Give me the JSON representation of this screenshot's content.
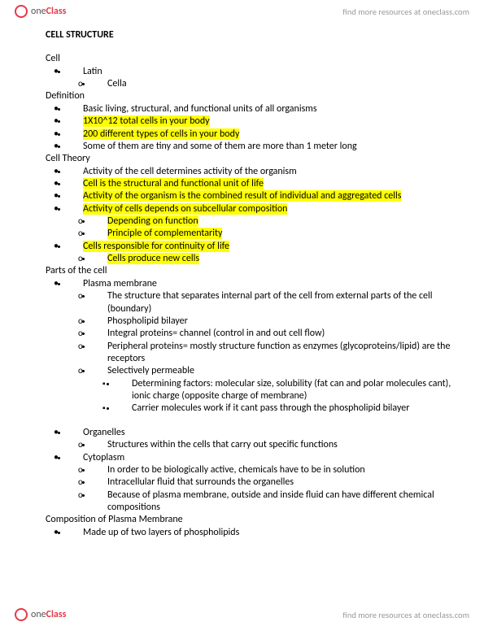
{
  "brand": {
    "name_a": "one",
    "name_b": "Class",
    "tagline": "find more resources at oneclass.com"
  },
  "colors": {
    "highlight": "#ffff00",
    "accent": "#e63946",
    "text": "#000000",
    "muted": "#888888",
    "bg": "#ffffff"
  },
  "doc": {
    "title": "CELL STRUCTURE",
    "sections": [
      {
        "heading": "Cell",
        "items": [
          {
            "lvl": 1,
            "m": "bullet",
            "t": "Latin"
          },
          {
            "lvl": 2,
            "m": "circf",
            "t": "Cella"
          }
        ]
      },
      {
        "heading": "Definition",
        "items": [
          {
            "lvl": 1,
            "m": "bullet",
            "t": "Basic living, structural, and functional units of all organisms"
          },
          {
            "lvl": 1,
            "m": "bullet",
            "t": "1X10^12 total cells in your body",
            "hl": true
          },
          {
            "lvl": 1,
            "m": "bullet",
            "t": "200 different types of cells in your body",
            "hl": true
          },
          {
            "lvl": 1,
            "m": "bullet",
            "t": "Some of them are tiny and some of them are more than 1 meter long"
          }
        ]
      },
      {
        "heading": "Cell Theory",
        "items": [
          {
            "lvl": 1,
            "m": "bullet",
            "t": "Activity of the cell determines activity of the organism"
          },
          {
            "lvl": 1,
            "m": "bullet",
            "t": "Cell is the structural and functional unit of life",
            "hl": true
          },
          {
            "lvl": 1,
            "m": "bullet",
            "t": "Activity of the organism is the combined result of individual and aggregated cells",
            "hl": true
          },
          {
            "lvl": 1,
            "m": "bullet",
            "t": "Activity of cells depends on subcellular composition",
            "hl": true
          },
          {
            "lvl": 2,
            "m": "circf",
            "t": "Depending on function",
            "hl": true
          },
          {
            "lvl": 2,
            "m": "circf",
            "t": "Principle of complementarity",
            "hl": true
          },
          {
            "lvl": 1,
            "m": "bullet",
            "t": "Cells responsible for continuity of life",
            "hl": true
          },
          {
            "lvl": 2,
            "m": "circf",
            "t": "Cells produce new cells",
            "hl": true
          }
        ]
      },
      {
        "heading": "Parts of the cell",
        "items": [
          {
            "lvl": 1,
            "m": "bullet",
            "t": "Plasma membrane"
          },
          {
            "lvl": 2,
            "m": "circf",
            "t": "The structure that separates internal part of the cell from external parts of the cell (boundary)"
          },
          {
            "lvl": 2,
            "m": "circf",
            "t": "Phospholipid bilayer"
          },
          {
            "lvl": 2,
            "m": "circf",
            "t": "Integral proteins= channel (control in and out cell flow)"
          },
          {
            "lvl": 2,
            "m": "circf",
            "t": "Peripheral proteins= mostly structure function as enzymes (glycoproteins/lipid) are the receptors"
          },
          {
            "lvl": 2,
            "m": "circf",
            "t": "Selectively permeable"
          },
          {
            "lvl": 3,
            "m": "square",
            "t": "Determining factors: molecular size, solubility (fat can and polar molecules cant), ionic charge (opposite charge of membrane)"
          },
          {
            "lvl": 3,
            "m": "square",
            "t": "Carrier molecules work if it cant pass through the phospholipid bilayer"
          }
        ]
      },
      {
        "spacer": true
      },
      {
        "items": [
          {
            "lvl": 1,
            "m": "bullet",
            "t": "Organelles"
          },
          {
            "lvl": 2,
            "m": "circf",
            "t": "Structures within the cells that carry out specific functions"
          },
          {
            "lvl": 1,
            "m": "bullet",
            "t": "Cytoplasm"
          },
          {
            "lvl": 2,
            "m": "circf",
            "t": "In order to be biologically active, chemicals have to be in solution"
          },
          {
            "lvl": 2,
            "m": "circf",
            "t": "Intracellular fluid that surrounds the organelles"
          },
          {
            "lvl": 2,
            "m": "circf",
            "t": "Because of plasma membrane, outside and inside fluid can have different chemical compositions"
          }
        ]
      },
      {
        "heading": "Composition of Plasma Membrane",
        "items": [
          {
            "lvl": 1,
            "m": "bullet",
            "t": "Made up of two layers of phospholipids"
          }
        ]
      }
    ]
  }
}
